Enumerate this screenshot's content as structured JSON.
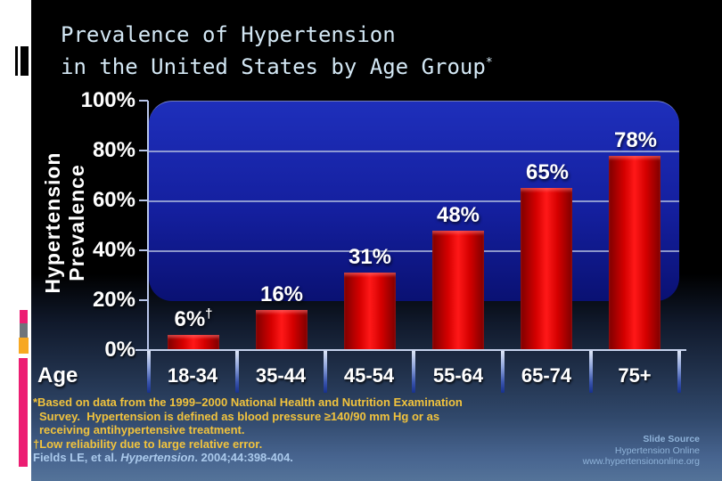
{
  "slide": {
    "title_line1": "Prevalence of Hypertension",
    "title_line2": "in the United States by Age Group",
    "title_superscript": "*"
  },
  "chart_data": {
    "type": "bar",
    "title": "Prevalence of Hypertension in the United States by Age Group*",
    "categories": [
      "18-34",
      "35-44",
      "45-54",
      "55-64",
      "65-74",
      "75+"
    ],
    "values": [
      6,
      16,
      31,
      48,
      65,
      78
    ],
    "value_labels": [
      "6%",
      "16%",
      "31%",
      "48%",
      "65%",
      "78%"
    ],
    "value_label_superscripts": [
      "†",
      "",
      "",
      "",
      "",
      ""
    ],
    "xlabel": "Age",
    "ylabel": "Hypertension Prevalence",
    "ylabel_line1": "Hypertension",
    "ylabel_line2": "Prevalence",
    "y_tick_labels": [
      "100%",
      "80%",
      "60%",
      "40%",
      "20%",
      "0%"
    ],
    "ylim": [
      0,
      100
    ],
    "y_tick_step": 20,
    "grid": "horizontal gridlines every 20%",
    "legend": "none",
    "bar_color": "#e10000",
    "plot_background_color": "#14239f"
  },
  "footnotes": {
    "note1_line1": "*Based on data from the 1999–2000 National Health and Nutrition Examination",
    "note1_line2": "Survey.  Hypertension is defined as blood pressure ≥140/90 mm Hg or as",
    "note1_line3": "receiving antihypertensive treatment.",
    "note2_symbol": "†",
    "note2_text": "Low reliability due to large relative error.",
    "citation_pre": "Fields LE, et al. ",
    "citation_journal": "Hypertension",
    "citation_post": ". 2004;44:398-404."
  },
  "source": {
    "line1": "Slide Source",
    "line2": "Hypertension Online",
    "line3": "www.hypertensiononline.org"
  },
  "colors": {
    "bar_red": "#e10000",
    "plot_navy": "#14239f",
    "footnote_gold": "#f1c33d",
    "citation_blue": "#aac9eb",
    "source_blue": "#8fb3d9",
    "accent_magenta": "#ec1d72",
    "accent_orange": "#f7a823",
    "accent_gray": "#6e747b",
    "title_blue": "#d3e7f4"
  }
}
